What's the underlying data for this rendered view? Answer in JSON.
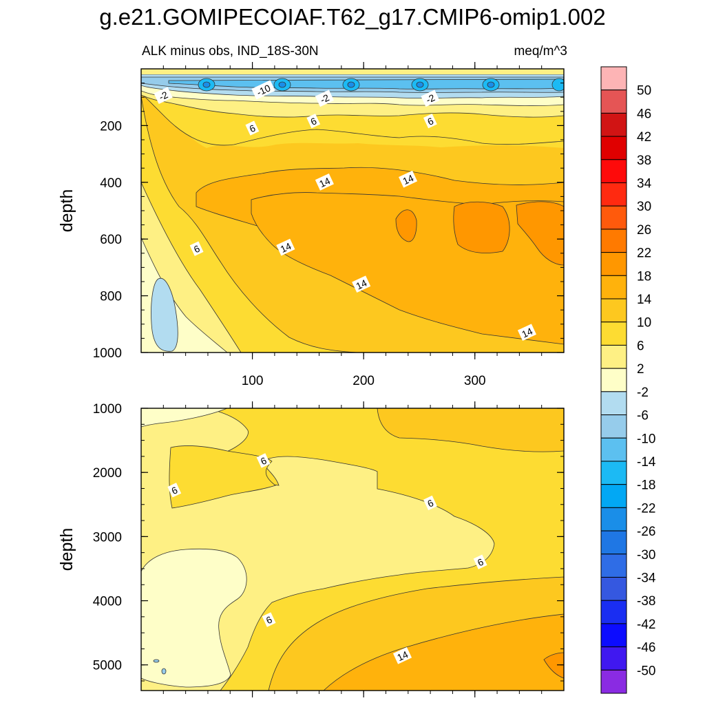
{
  "title": "g.e21.GOMIPECOIAF.T62_g17.CMIP6-omip1.002",
  "subtitle_left": "ALK minus obs, IND_18S-30N",
  "subtitle_right": "meq/m^3",
  "chart_data": [
    {
      "type": "heatmap",
      "name": "upper-ocean",
      "ylabel": "depth",
      "xlabel": "",
      "xlim": [
        0,
        380
      ],
      "ylim": [
        1000,
        0
      ],
      "x_ticks": [
        100,
        200,
        300
      ],
      "y_ticks": [
        200,
        400,
        600,
        800,
        1000
      ],
      "contour_labels": [
        {
          "text": "-2",
          "x": 20,
          "y": 95
        },
        {
          "text": "-10",
          "x": 110,
          "y": 75
        },
        {
          "text": "-2",
          "x": 165,
          "y": 105
        },
        {
          "text": "-2",
          "x": 260,
          "y": 105
        },
        {
          "text": "6",
          "x": 100,
          "y": 210
        },
        {
          "text": "6",
          "x": 155,
          "y": 185
        },
        {
          "text": "6",
          "x": 260,
          "y": 185
        },
        {
          "text": "14",
          "x": 165,
          "y": 400
        },
        {
          "text": "14",
          "x": 240,
          "y": 390
        },
        {
          "text": "6",
          "x": 50,
          "y": 635
        },
        {
          "text": "14",
          "x": 130,
          "y": 630
        },
        {
          "text": "14",
          "x": 198,
          "y": 760
        },
        {
          "text": "14",
          "x": 347,
          "y": 930
        }
      ]
    },
    {
      "type": "heatmap",
      "name": "deep-ocean",
      "ylabel": "depth",
      "xlabel": "",
      "xlim": [
        0,
        380
      ],
      "ylim": [
        5400,
        1000
      ],
      "x_ticks": [
        100,
        200,
        300
      ],
      "y_ticks": [
        1000,
        2000,
        3000,
        4000,
        5000
      ],
      "contour_labels": [
        {
          "text": "6",
          "x": 110,
          "y": 1820
        },
        {
          "text": "6",
          "x": 30,
          "y": 2280
        },
        {
          "text": "6",
          "x": 260,
          "y": 2480
        },
        {
          "text": "6",
          "x": 305,
          "y": 3400
        },
        {
          "text": "6",
          "x": 115,
          "y": 4300
        },
        {
          "text": "14",
          "x": 235,
          "y": 4860
        }
      ]
    }
  ],
  "colorbar": {
    "units": "meq/m^3",
    "levels": [
      "50",
      "46",
      "42",
      "38",
      "34",
      "30",
      "26",
      "22",
      "18",
      "14",
      "10",
      "6",
      "2",
      "-2",
      "-6",
      "-10",
      "-14",
      "-18",
      "-22",
      "-26",
      "-30",
      "-34",
      "-38",
      "-42",
      "-46",
      "-50"
    ],
    "colors": [
      "#fdb4b5",
      "#e55555",
      "#d11414",
      "#e00000",
      "#fe0a0a",
      "#ff2a10",
      "#ff5a0c",
      "#ff7a00",
      "#ff9700",
      "#ffb20c",
      "#fdc81f",
      "#fddc32",
      "#fef084",
      "#fefec8",
      "#b2dcf0",
      "#96cceb",
      "#5cc0f0",
      "#1cbaf4",
      "#02a8f4",
      "#1a8ee8",
      "#1f77e4",
      "#2f6de6",
      "#3558e0",
      "#1a2ef2",
      "#0c0cff",
      "#4018f0",
      "#8a2be2"
    ]
  }
}
